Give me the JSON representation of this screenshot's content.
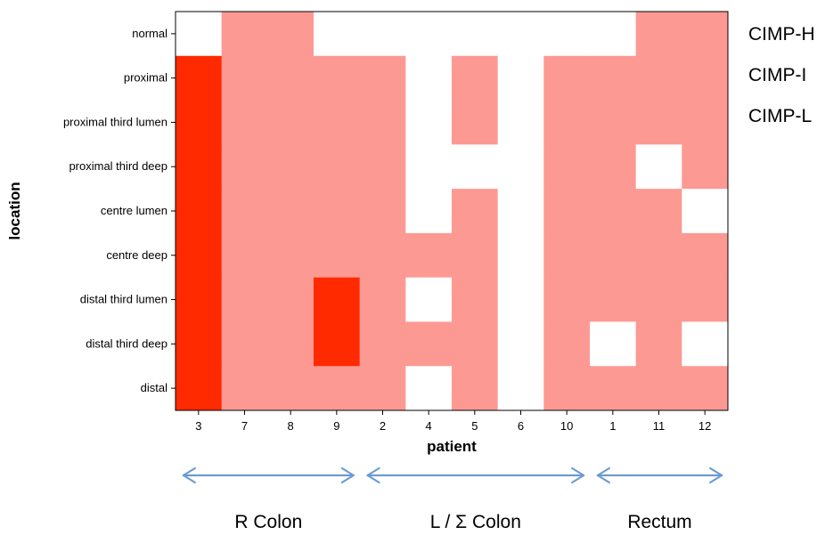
{
  "chart_data": {
    "type": "heatmap",
    "xlabel": "patient",
    "ylabel": "location",
    "x": [
      "3",
      "7",
      "8",
      "9",
      "2",
      "4",
      "5",
      "6",
      "10",
      "1",
      "11",
      "12"
    ],
    "y": [
      "normal",
      "proximal",
      "proximal third lumen",
      "proximal third deep",
      "centre lumen",
      "centre deep",
      "distal third lumen",
      "distal third deep",
      "distal"
    ],
    "legend": [
      {
        "label": "CIMP-H",
        "level": 2,
        "color": "#ff2a00"
      },
      {
        "label": "CIMP-I",
        "level": 1,
        "color": "#fd9993"
      },
      {
        "label": "CIMP-L",
        "level": 0,
        "color": "#ffffff"
      }
    ],
    "values": [
      [
        0,
        1,
        1,
        0,
        0,
        0,
        0,
        0,
        0,
        0,
        1,
        1
      ],
      [
        2,
        1,
        1,
        1,
        1,
        0,
        1,
        0,
        1,
        1,
        1,
        1
      ],
      [
        2,
        1,
        1,
        1,
        1,
        0,
        1,
        0,
        1,
        1,
        1,
        1
      ],
      [
        2,
        1,
        1,
        1,
        1,
        0,
        0,
        0,
        1,
        1,
        0,
        1
      ],
      [
        2,
        1,
        1,
        1,
        1,
        0,
        1,
        0,
        1,
        1,
        1,
        0
      ],
      [
        2,
        1,
        1,
        1,
        1,
        1,
        1,
        0,
        1,
        1,
        1,
        1
      ],
      [
        2,
        1,
        1,
        2,
        1,
        0,
        1,
        0,
        1,
        1,
        1,
        1
      ],
      [
        2,
        1,
        1,
        2,
        1,
        1,
        1,
        0,
        1,
        0,
        1,
        0
      ],
      [
        2,
        1,
        1,
        1,
        1,
        0,
        1,
        0,
        1,
        1,
        1,
        1
      ]
    ],
    "groups": [
      {
        "label": "R Colon",
        "from": "3",
        "to": "9"
      },
      {
        "label": "L / Σ Colon",
        "from": "2",
        "to": "10"
      },
      {
        "label": "Rectum",
        "from": "1",
        "to": "12"
      }
    ],
    "grid": false,
    "legend_placement": "right"
  }
}
